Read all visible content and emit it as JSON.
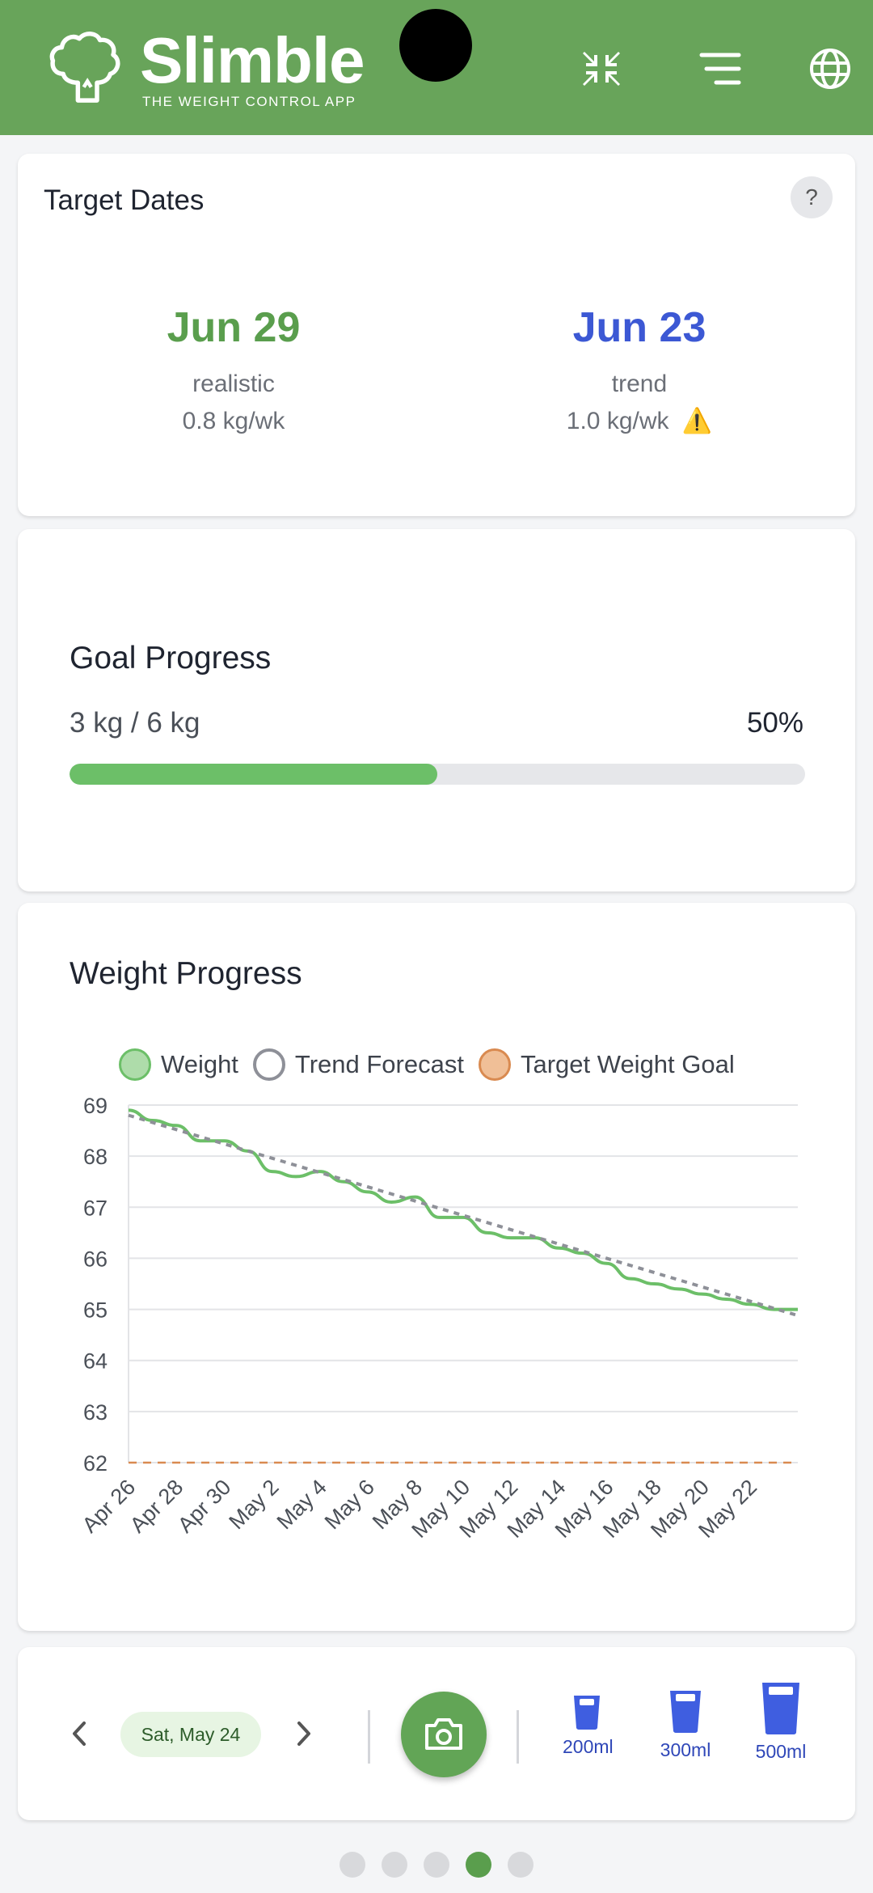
{
  "app": {
    "brand": "Slimble",
    "tagline": "THE WEIGHT CONTROL APP"
  },
  "header_icons": [
    "collapse-icon",
    "menu-icon",
    "globe-icon"
  ],
  "colors": {
    "brand_green": "#68a45a",
    "realistic": "#5a9e4d",
    "trend": "#3c58d4",
    "weight_line": "#6cbf68",
    "goal_line": "#d98a50"
  },
  "target_dates": {
    "title": "Target Dates",
    "help": "?",
    "realistic": {
      "date": "Jun 29",
      "label": "realistic",
      "rate": "0.8 kg/wk"
    },
    "trend": {
      "date": "Jun 23",
      "label": "trend",
      "rate": "1.0 kg/wk",
      "warning": "⚠️"
    }
  },
  "goal_progress": {
    "title": "Goal Progress",
    "summary": "3 kg / 6 kg",
    "percent_label": "50%",
    "fraction": 0.5
  },
  "weight_progress": {
    "title": "Weight Progress"
  },
  "chart_data": {
    "type": "line",
    "title": "Weight Progress",
    "legend": [
      "Weight",
      "Trend Forecast",
      "Target Weight Goal"
    ],
    "legend_position": "top",
    "ylim": [
      62,
      69
    ],
    "yticks": [
      "69",
      "68",
      "67",
      "66",
      "65",
      "64",
      "63",
      "62"
    ],
    "categories": [
      "Apr 26",
      "Apr 27",
      "Apr 28",
      "Apr 29",
      "Apr 30",
      "May 1",
      "May 2",
      "May 3",
      "May 4",
      "May 5",
      "May 6",
      "May 7",
      "May 8",
      "May 9",
      "May 10",
      "May 11",
      "May 12",
      "May 13",
      "May 14",
      "May 15",
      "May 16",
      "May 17",
      "May 18",
      "May 19",
      "May 20",
      "May 21",
      "May 22",
      "May 23",
      "May 24"
    ],
    "xtick_labels": [
      "Apr 26",
      "Apr 28",
      "Apr 30",
      "May 2",
      "May 4",
      "May 6",
      "May 8",
      "May 10",
      "May 12",
      "May 14",
      "May 16",
      "May 18",
      "May 20",
      "May 22"
    ],
    "series": [
      {
        "name": "Weight",
        "values": [
          68.9,
          68.7,
          68.6,
          68.3,
          68.3,
          68.1,
          67.7,
          67.6,
          67.7,
          67.5,
          67.3,
          67.1,
          67.2,
          66.8,
          66.8,
          66.5,
          66.4,
          66.4,
          66.2,
          66.1,
          65.9,
          65.6,
          65.5,
          65.4,
          65.3,
          65.2,
          65.1,
          65.0,
          65.0
        ]
      },
      {
        "name": "Trend Forecast",
        "values": [
          68.8,
          68.66,
          68.52,
          68.38,
          68.24,
          68.1,
          67.96,
          67.82,
          67.68,
          67.54,
          67.4,
          67.26,
          67.12,
          66.98,
          66.84,
          66.7,
          66.56,
          66.42,
          66.28,
          66.14,
          66.0,
          65.86,
          65.72,
          65.58,
          65.44,
          65.3,
          65.16,
          65.02,
          64.88
        ]
      },
      {
        "name": "Target Weight Goal",
        "values": [
          62,
          62,
          62,
          62,
          62,
          62,
          62,
          62,
          62,
          62,
          62,
          62,
          62,
          62,
          62,
          62,
          62,
          62,
          62,
          62,
          62,
          62,
          62,
          62,
          62,
          62,
          62,
          62,
          62
        ]
      }
    ]
  },
  "bottom": {
    "date": "Sat, May 24",
    "water": [
      {
        "label": "200ml"
      },
      {
        "label": "300ml"
      },
      {
        "label": "500ml"
      }
    ]
  },
  "pager": {
    "count": 5,
    "active": 4
  }
}
